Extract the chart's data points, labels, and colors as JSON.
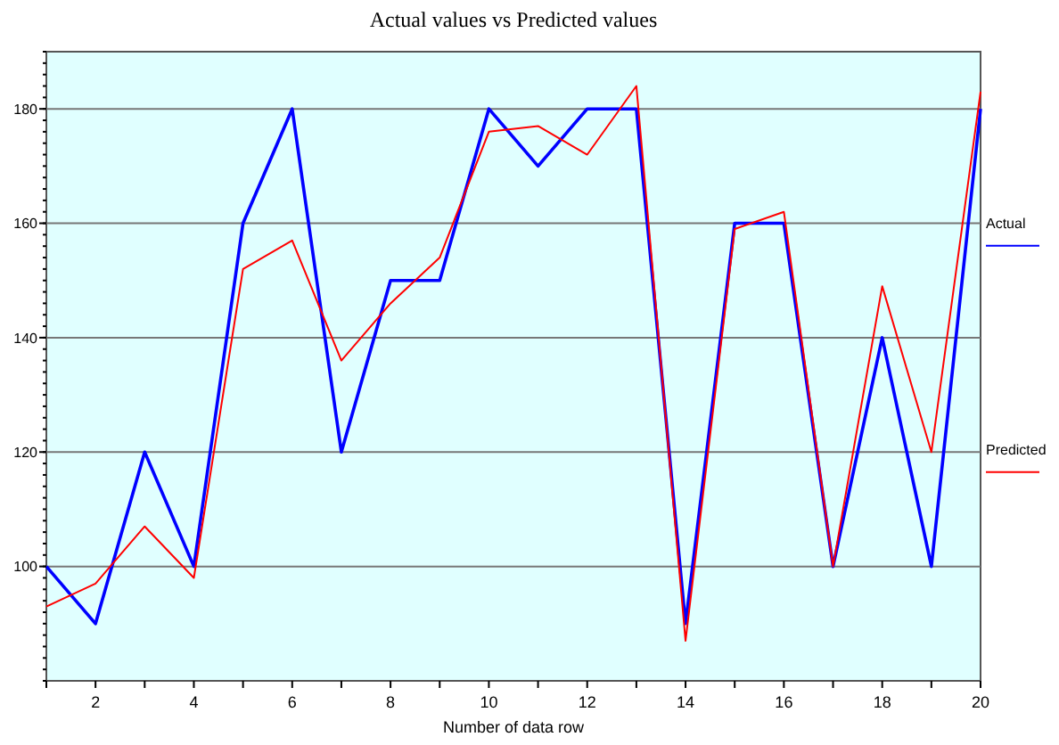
{
  "chart_data": {
    "type": "line",
    "title": "Actual values vs Predicted values",
    "xlabel": "Number of data row",
    "x": [
      1,
      2,
      3,
      4,
      5,
      6,
      7,
      8,
      9,
      10,
      11,
      12,
      13,
      14,
      15,
      16,
      17,
      18,
      19,
      20
    ],
    "series": [
      {
        "name": "Actual",
        "color": "#0000ff",
        "values": [
          100,
          90,
          120,
          100,
          160,
          180,
          120,
          150,
          150,
          180,
          170,
          180,
          180,
          90,
          160,
          160,
          100,
          140,
          100,
          180
        ]
      },
      {
        "name": "Predicted",
        "color": "#ff0000",
        "values": [
          93,
          97,
          107,
          98,
          152,
          157,
          136,
          146,
          154,
          176,
          177,
          172,
          184,
          87,
          159,
          162,
          100,
          149,
          120,
          183
        ]
      }
    ],
    "xlim": [
      1,
      20
    ],
    "xticks": [
      {
        "value": 1,
        "label": null
      },
      2,
      {
        "value": 3,
        "label": null
      },
      4,
      {
        "value": 5,
        "label": null
      },
      6,
      {
        "value": 7,
        "label": null
      },
      8,
      {
        "value": 9,
        "label": null
      },
      10,
      {
        "value": 11,
        "label": null
      },
      12,
      {
        "value": 13,
        "label": null
      },
      14,
      {
        "value": 15,
        "label": null
      },
      16,
      {
        "value": 17,
        "label": null
      },
      18,
      {
        "value": 19,
        "label": null
      },
      20
    ],
    "ylim": [
      80,
      190
    ],
    "yticks": [
      100,
      120,
      140,
      160,
      180
    ],
    "grid": "y",
    "legend": "right",
    "line_style": "solid",
    "marker": "none"
  }
}
